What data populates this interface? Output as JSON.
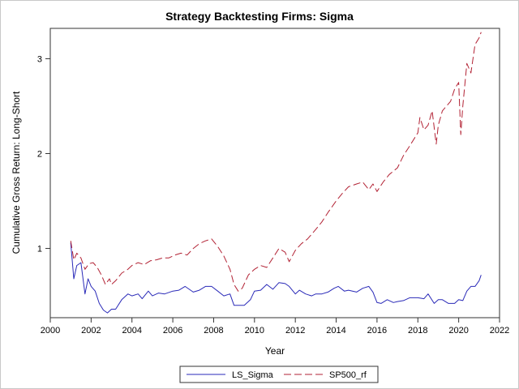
{
  "chart_data": {
    "type": "line",
    "title": "Strategy Backtesting  Firms: Sigma",
    "xlabel": "Year",
    "ylabel": "Cumulative Gross Return: Long-Short",
    "xlim": [
      2000,
      2022
    ],
    "ylim": [
      0.27,
      3.32
    ],
    "xticks": [
      2000,
      2002,
      2004,
      2006,
      2008,
      2010,
      2012,
      2014,
      2016,
      2018,
      2020,
      2022
    ],
    "yticks": [
      1,
      2,
      3
    ],
    "grid": false,
    "legend_position": "bottom",
    "series": [
      {
        "name": "LS_Sigma",
        "color": "#2a2ab8",
        "dash": "solid",
        "x": [
          2001.0,
          2001.15,
          2001.3,
          2001.5,
          2001.7,
          2001.85,
          2002.0,
          2002.2,
          2002.4,
          2002.6,
          2002.8,
          2003.0,
          2003.2,
          2003.5,
          2003.8,
          2004.0,
          2004.3,
          2004.5,
          2004.8,
          2005.0,
          2005.3,
          2005.6,
          2006.0,
          2006.3,
          2006.6,
          2007.0,
          2007.3,
          2007.6,
          2007.9,
          2008.2,
          2008.5,
          2008.8,
          2009.0,
          2009.2,
          2009.5,
          2009.8,
          2010.0,
          2010.3,
          2010.6,
          2010.9,
          2011.2,
          2011.5,
          2011.7,
          2012.0,
          2012.2,
          2012.5,
          2012.8,
          2013.0,
          2013.3,
          2013.6,
          2013.9,
          2014.1,
          2014.4,
          2014.6,
          2015.0,
          2015.3,
          2015.6,
          2015.8,
          2016.0,
          2016.2,
          2016.5,
          2016.8,
          2017.0,
          2017.3,
          2017.6,
          2018.0,
          2018.3,
          2018.5,
          2018.8,
          2019.0,
          2019.2,
          2019.5,
          2019.8,
          2020.0,
          2020.2,
          2020.4,
          2020.6,
          2020.8,
          2021.0,
          2021.1
        ],
        "values": [
          1.06,
          0.68,
          0.82,
          0.85,
          0.52,
          0.68,
          0.6,
          0.55,
          0.42,
          0.35,
          0.32,
          0.36,
          0.36,
          0.46,
          0.52,
          0.5,
          0.52,
          0.47,
          0.55,
          0.5,
          0.53,
          0.52,
          0.55,
          0.56,
          0.6,
          0.54,
          0.56,
          0.6,
          0.6,
          0.55,
          0.5,
          0.52,
          0.4,
          0.4,
          0.4,
          0.46,
          0.55,
          0.56,
          0.62,
          0.57,
          0.64,
          0.63,
          0.6,
          0.52,
          0.56,
          0.52,
          0.5,
          0.52,
          0.52,
          0.54,
          0.58,
          0.6,
          0.55,
          0.56,
          0.54,
          0.58,
          0.6,
          0.54,
          0.43,
          0.42,
          0.46,
          0.43,
          0.44,
          0.45,
          0.48,
          0.48,
          0.47,
          0.52,
          0.42,
          0.46,
          0.46,
          0.42,
          0.42,
          0.46,
          0.45,
          0.55,
          0.6,
          0.6,
          0.66,
          0.72
        ]
      },
      {
        "name": "SP500_rf",
        "color": "#b22234",
        "dash": "dashed",
        "x": [
          2001.0,
          2001.15,
          2001.3,
          2001.5,
          2001.7,
          2001.9,
          2002.1,
          2002.3,
          2002.5,
          2002.7,
          2002.9,
          2003.0,
          2003.2,
          2003.5,
          2003.8,
          2004.0,
          2004.3,
          2004.6,
          2004.9,
          2005.2,
          2005.5,
          2005.8,
          2006.1,
          2006.4,
          2006.7,
          2007.0,
          2007.3,
          2007.6,
          2007.9,
          2008.2,
          2008.5,
          2008.8,
          2009.0,
          2009.2,
          2009.4,
          2009.7,
          2010.0,
          2010.3,
          2010.6,
          2010.9,
          2011.2,
          2011.5,
          2011.7,
          2012.0,
          2012.3,
          2012.6,
          2013.0,
          2013.3,
          2013.6,
          2014.0,
          2014.3,
          2014.6,
          2015.0,
          2015.3,
          2015.6,
          2015.8,
          2016.0,
          2016.3,
          2016.6,
          2017.0,
          2017.3,
          2017.6,
          2018.0,
          2018.1,
          2018.3,
          2018.5,
          2018.7,
          2018.9,
          2019.0,
          2019.2,
          2019.4,
          2019.6,
          2019.8,
          2020.0,
          2020.1,
          2020.2,
          2020.4,
          2020.6,
          2020.8,
          2021.0,
          2021.1
        ],
        "values": [
          1.08,
          0.88,
          0.95,
          0.9,
          0.78,
          0.84,
          0.85,
          0.8,
          0.72,
          0.62,
          0.68,
          0.62,
          0.66,
          0.74,
          0.78,
          0.82,
          0.85,
          0.83,
          0.87,
          0.88,
          0.9,
          0.9,
          0.93,
          0.95,
          0.93,
          1.0,
          1.05,
          1.08,
          1.1,
          1.02,
          0.92,
          0.78,
          0.62,
          0.55,
          0.58,
          0.72,
          0.78,
          0.82,
          0.8,
          0.9,
          1.0,
          0.96,
          0.86,
          0.98,
          1.05,
          1.1,
          1.2,
          1.28,
          1.38,
          1.5,
          1.58,
          1.65,
          1.68,
          1.7,
          1.62,
          1.68,
          1.6,
          1.7,
          1.78,
          1.85,
          1.98,
          2.08,
          2.22,
          2.38,
          2.25,
          2.3,
          2.45,
          2.1,
          2.3,
          2.45,
          2.5,
          2.55,
          2.68,
          2.75,
          2.2,
          2.5,
          2.95,
          2.85,
          3.15,
          3.22,
          3.28
        ]
      }
    ]
  }
}
